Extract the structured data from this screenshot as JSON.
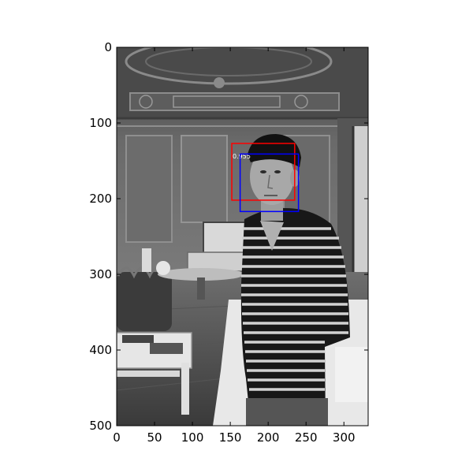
{
  "image": {
    "width": 332,
    "height": 500,
    "colormap": "grayscale",
    "scene": "man in striped long-sleeve shirt and cap standing in an ornate room"
  },
  "axes": {
    "x_ticks": [
      "0",
      "50",
      "100",
      "150",
      "200",
      "250",
      "300"
    ],
    "y_ticks": [
      "0",
      "100",
      "200",
      "300",
      "400",
      "500"
    ],
    "x_tick_values": [
      0,
      50,
      100,
      150,
      200,
      250,
      300
    ],
    "y_tick_values": [
      0,
      100,
      200,
      300,
      400,
      500
    ]
  },
  "detections": [
    {
      "label": "red-box",
      "color": "#ff0000",
      "x1": 152,
      "y1": 127,
      "x2": 235,
      "y2": 202,
      "score": "0.955"
    },
    {
      "label": "blue-box",
      "color": "#0000ff",
      "x1": 163,
      "y1": 141,
      "x2": 240,
      "y2": 217,
      "score": ""
    }
  ]
}
